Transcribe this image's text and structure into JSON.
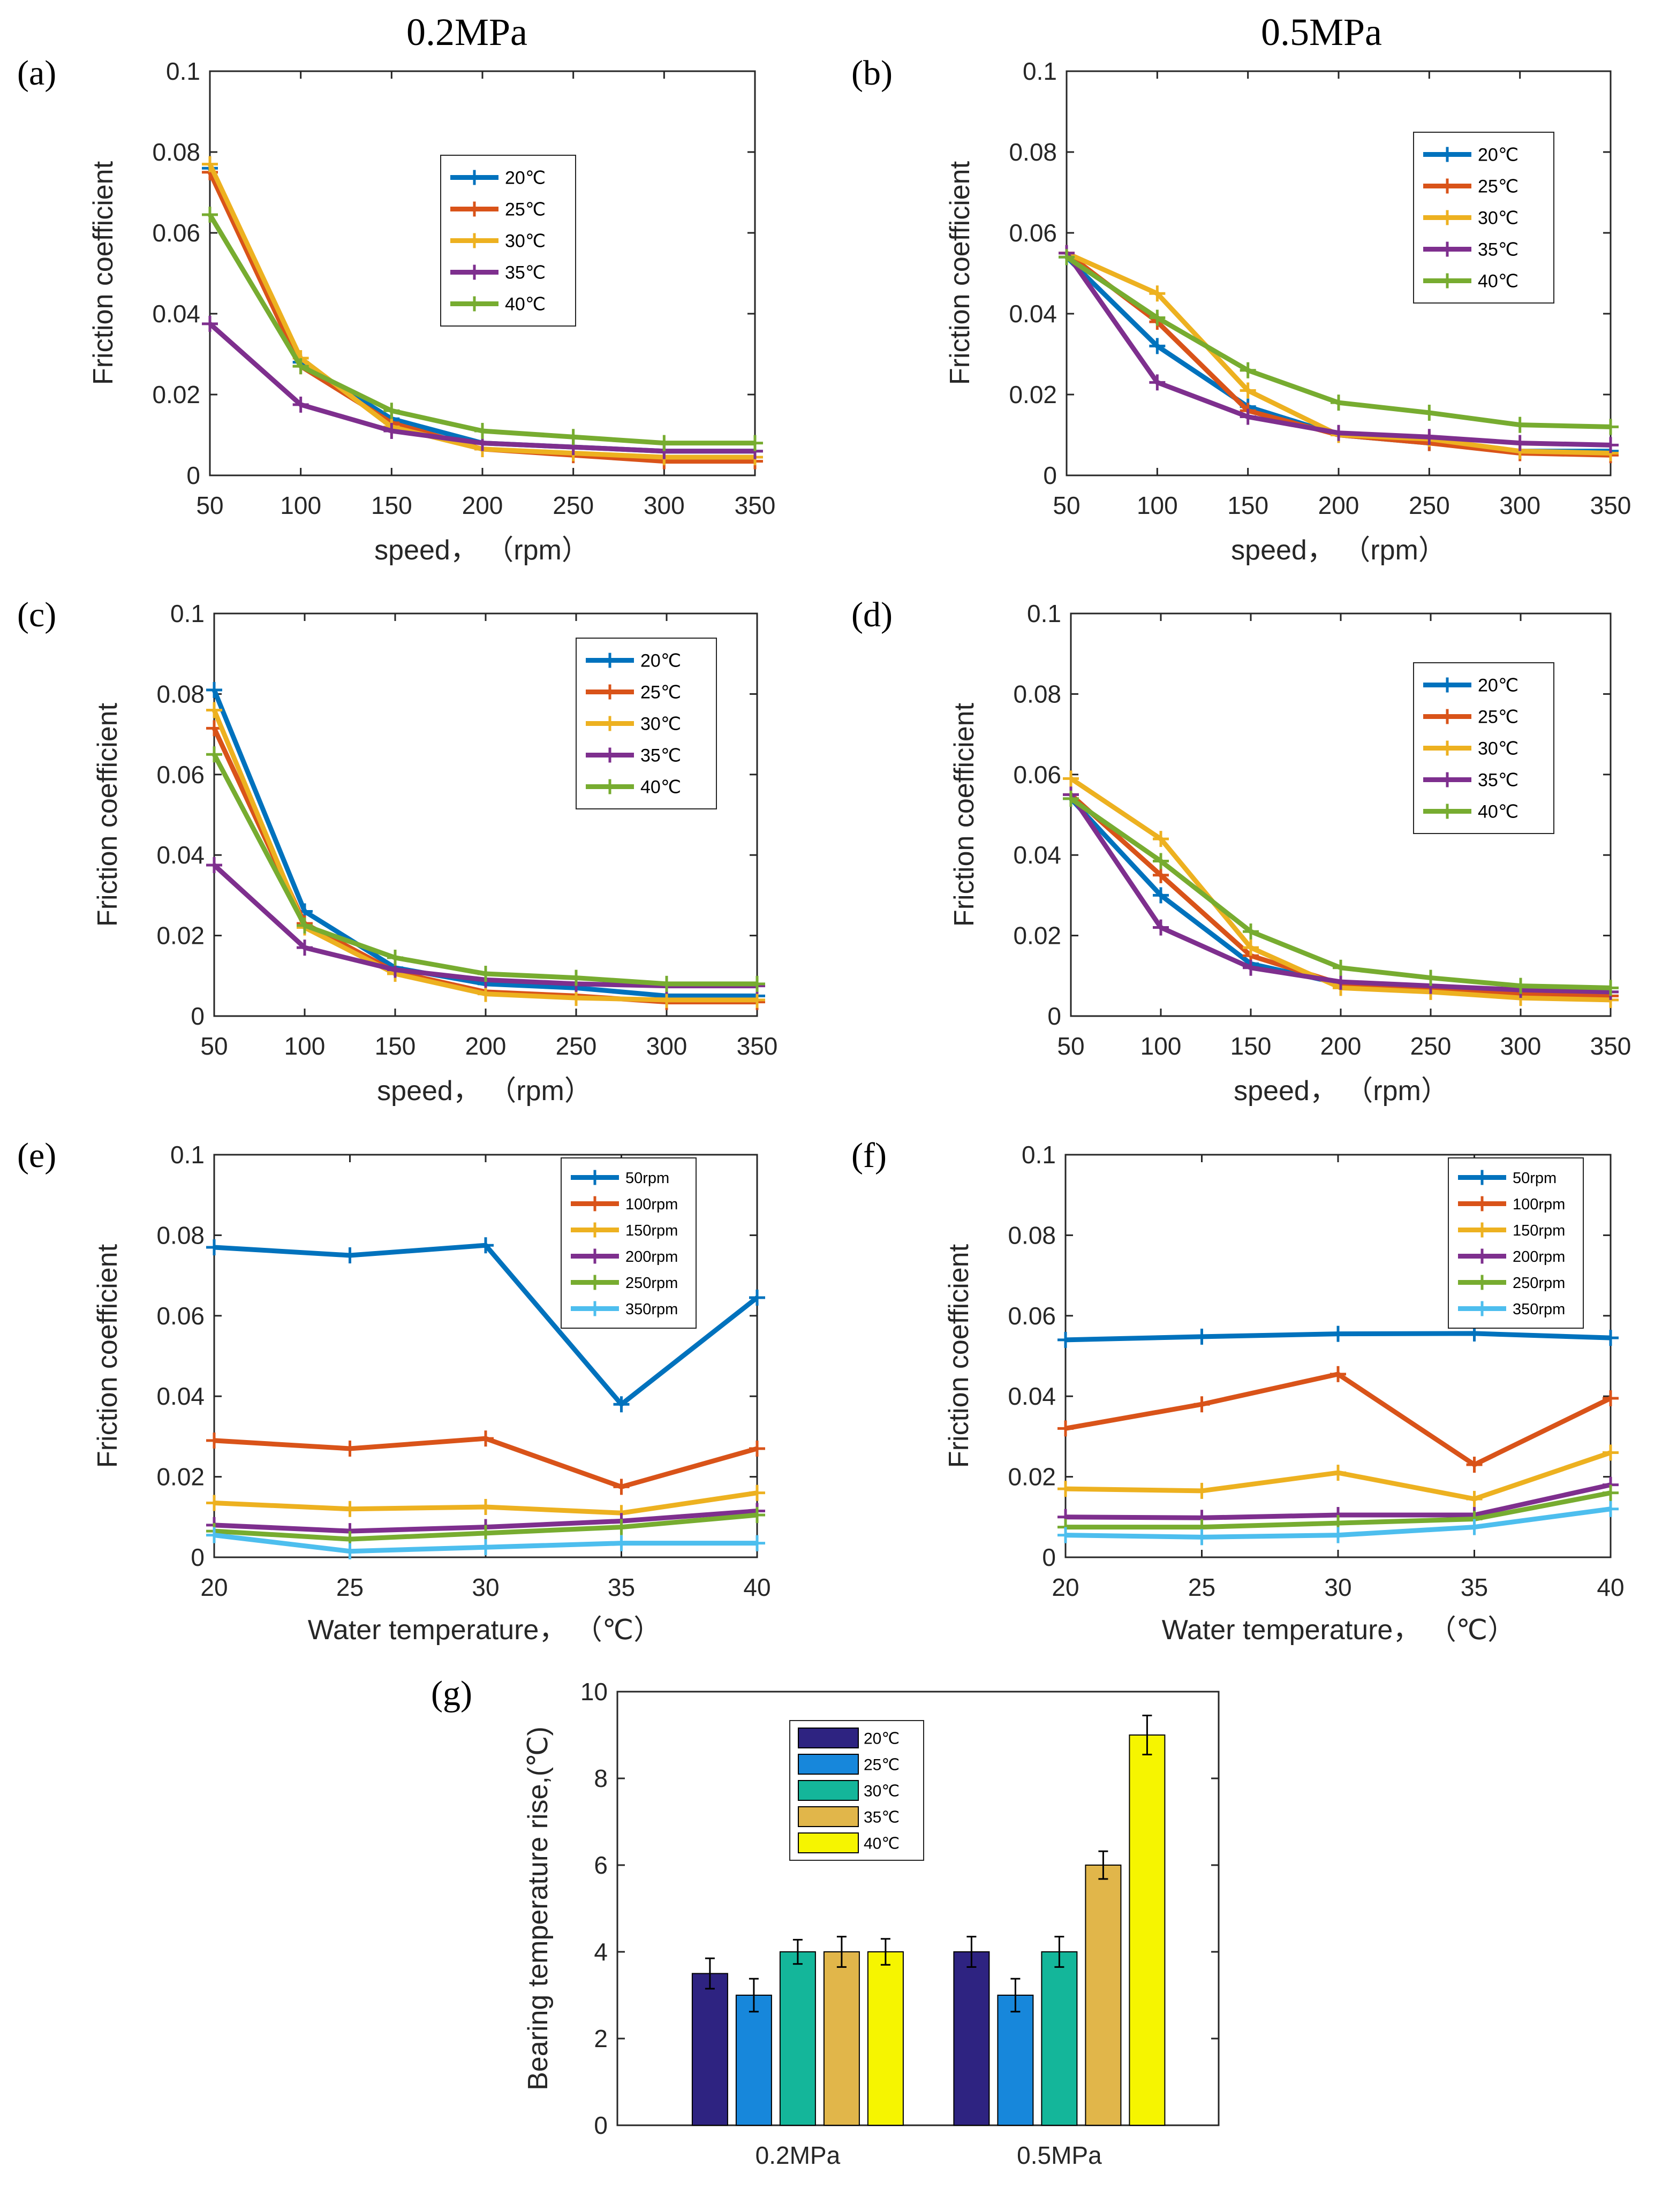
{
  "figure": {
    "header_left": "0.2MPa",
    "header_right": "0.5MPa"
  },
  "colors": {
    "c1": "#0072BD",
    "c2": "#D95319",
    "c3": "#EDB120",
    "c4": "#7E2F8E",
    "c5": "#77AC30",
    "c6": "#4DBEEE",
    "axis": "#262626",
    "bar1": "#2E2381",
    "bar2": "#1787DB",
    "bar3": "#14B69A",
    "bar4": "#E1B64A",
    "bar5": "#F6F500"
  },
  "chart_data": [
    {
      "id": "a",
      "panel_label": "(a)",
      "type": "line",
      "xlabel": "speed， （rpm）",
      "ylabel": "Friction coefficient",
      "xlim": [
        50,
        350
      ],
      "ylim": [
        0,
        0.1
      ],
      "xticks": [
        "50",
        "100",
        "150",
        "200",
        "250",
        "300",
        "350"
      ],
      "yticks": [
        "0",
        "0.02",
        "0.04",
        "0.06",
        "0.08",
        "0.1"
      ],
      "x": [
        50,
        100,
        150,
        200,
        250,
        300,
        350
      ],
      "series": [
        {
          "name": "20℃",
          "color": "#0072BD",
          "values": [
            0.076,
            0.028,
            0.014,
            0.008,
            0.007,
            0.006,
            0.006
          ]
        },
        {
          "name": "25℃",
          "color": "#D95319",
          "values": [
            0.075,
            0.027,
            0.013,
            0.0065,
            0.005,
            0.0035,
            0.0035
          ]
        },
        {
          "name": "30℃",
          "color": "#EDB120",
          "values": [
            0.077,
            0.029,
            0.012,
            0.0065,
            0.0055,
            0.0045,
            0.0045
          ]
        },
        {
          "name": "35℃",
          "color": "#7E2F8E",
          "values": [
            0.0375,
            0.0175,
            0.011,
            0.008,
            0.007,
            0.006,
            0.006
          ]
        },
        {
          "name": "40℃",
          "color": "#77AC30",
          "values": [
            0.0645,
            0.027,
            0.016,
            0.011,
            0.0095,
            0.008,
            0.008
          ]
        }
      ]
    },
    {
      "id": "b",
      "panel_label": "(b)",
      "type": "line",
      "xlabel": "speed， （rpm）",
      "ylabel": "Friction coefficient",
      "xlim": [
        50,
        350
      ],
      "ylim": [
        0,
        0.1
      ],
      "xticks": [
        "50",
        "100",
        "150",
        "200",
        "250",
        "300",
        "350"
      ],
      "yticks": [
        "0",
        "0.02",
        "0.04",
        "0.06",
        "0.08",
        "0.1"
      ],
      "x": [
        50,
        100,
        150,
        200,
        250,
        300,
        350
      ],
      "series": [
        {
          "name": "20℃",
          "color": "#0072BD",
          "values": [
            0.054,
            0.032,
            0.017,
            0.01,
            0.008,
            0.006,
            0.006
          ]
        },
        {
          "name": "25℃",
          "color": "#D95319",
          "values": [
            0.055,
            0.038,
            0.016,
            0.01,
            0.008,
            0.0055,
            0.005
          ]
        },
        {
          "name": "30℃",
          "color": "#EDB120",
          "values": [
            0.055,
            0.045,
            0.021,
            0.01,
            0.009,
            0.006,
            0.0055
          ]
        },
        {
          "name": "35℃",
          "color": "#7E2F8E",
          "values": [
            0.055,
            0.023,
            0.0145,
            0.0105,
            0.0095,
            0.008,
            0.0075
          ]
        },
        {
          "name": "40℃",
          "color": "#77AC30",
          "values": [
            0.054,
            0.039,
            0.026,
            0.018,
            0.0155,
            0.0125,
            0.012
          ]
        }
      ]
    },
    {
      "id": "c",
      "panel_label": "(c)",
      "type": "line",
      "xlabel": "speed， （rpm）",
      "ylabel": "Friction coefficient",
      "xlim": [
        50,
        350
      ],
      "ylim": [
        0,
        0.1
      ],
      "xticks": [
        "50",
        "100",
        "150",
        "200",
        "250",
        "300",
        "350"
      ],
      "yticks": [
        "0",
        "0.02",
        "0.04",
        "0.06",
        "0.08",
        "0.1"
      ],
      "x": [
        50,
        100,
        150,
        200,
        250,
        300,
        350
      ],
      "series": [
        {
          "name": "20℃",
          "color": "#0072BD",
          "values": [
            0.081,
            0.026,
            0.012,
            0.008,
            0.007,
            0.005,
            0.005
          ]
        },
        {
          "name": "25℃",
          "color": "#D95319",
          "values": [
            0.0715,
            0.023,
            0.011,
            0.006,
            0.005,
            0.0035,
            0.0035
          ]
        },
        {
          "name": "30℃",
          "color": "#EDB120",
          "values": [
            0.076,
            0.022,
            0.0105,
            0.0055,
            0.0045,
            0.004,
            0.004
          ]
        },
        {
          "name": "35℃",
          "color": "#7E2F8E",
          "values": [
            0.0375,
            0.017,
            0.0115,
            0.009,
            0.008,
            0.0075,
            0.0075
          ]
        },
        {
          "name": "40℃",
          "color": "#77AC30",
          "values": [
            0.065,
            0.0225,
            0.0145,
            0.0105,
            0.0095,
            0.008,
            0.008
          ]
        }
      ]
    },
    {
      "id": "d",
      "panel_label": "(d)",
      "type": "line",
      "xlabel": "speed， （rpm）",
      "ylabel": "Friction coefficient",
      "xlim": [
        50,
        350
      ],
      "ylim": [
        0,
        0.1
      ],
      "xticks": [
        "50",
        "100",
        "150",
        "200",
        "250",
        "300",
        "350"
      ],
      "yticks": [
        "0",
        "0.02",
        "0.04",
        "0.06",
        "0.08",
        "0.1"
      ],
      "x": [
        50,
        100,
        150,
        200,
        250,
        300,
        350
      ],
      "series": [
        {
          "name": "20℃",
          "color": "#0072BD",
          "values": [
            0.054,
            0.03,
            0.013,
            0.008,
            0.007,
            0.006,
            0.006
          ]
        },
        {
          "name": "25℃",
          "color": "#D95319",
          "values": [
            0.055,
            0.035,
            0.015,
            0.008,
            0.007,
            0.0055,
            0.005
          ]
        },
        {
          "name": "30℃",
          "color": "#EDB120",
          "values": [
            0.059,
            0.044,
            0.017,
            0.007,
            0.006,
            0.0045,
            0.004
          ]
        },
        {
          "name": "35℃",
          "color": "#7E2F8E",
          "values": [
            0.055,
            0.022,
            0.012,
            0.0085,
            0.0075,
            0.0065,
            0.006
          ]
        },
        {
          "name": "40℃",
          "color": "#77AC30",
          "values": [
            0.054,
            0.0385,
            0.021,
            0.012,
            0.0095,
            0.0075,
            0.007
          ]
        }
      ]
    },
    {
      "id": "e",
      "panel_label": "(e)",
      "type": "line",
      "xlabel": "Water temperature， （℃）",
      "ylabel": "Friction coefficient",
      "xlim": [
        20,
        40
      ],
      "ylim": [
        0,
        0.1
      ],
      "xticks": [
        "20",
        "25",
        "30",
        "35",
        "40"
      ],
      "yticks": [
        "0",
        "0.02",
        "0.04",
        "0.06",
        "0.08",
        "0.1"
      ],
      "x": [
        20,
        25,
        30,
        35,
        40
      ],
      "series": [
        {
          "name": "50rpm",
          "color": "#0072BD",
          "values": [
            0.077,
            0.075,
            0.0775,
            0.038,
            0.0645
          ]
        },
        {
          "name": "100rpm",
          "color": "#D95319",
          "values": [
            0.029,
            0.027,
            0.0295,
            0.0175,
            0.027
          ]
        },
        {
          "name": "150rpm",
          "color": "#EDB120",
          "values": [
            0.0135,
            0.012,
            0.0125,
            0.011,
            0.016
          ]
        },
        {
          "name": "200rpm",
          "color": "#7E2F8E",
          "values": [
            0.008,
            0.0065,
            0.0075,
            0.009,
            0.0115
          ]
        },
        {
          "name": "250rpm",
          "color": "#77AC30",
          "values": [
            0.0065,
            0.0045,
            0.006,
            0.0075,
            0.0105
          ]
        },
        {
          "name": "350rpm",
          "color": "#4DBEEE",
          "values": [
            0.0055,
            0.0015,
            0.0025,
            0.0035,
            0.0035
          ]
        }
      ]
    },
    {
      "id": "f",
      "panel_label": "(f)",
      "type": "line",
      "xlabel": "Water temperature， （℃）",
      "ylabel": "Friction coefficient",
      "xlim": [
        20,
        40
      ],
      "ylim": [
        0,
        0.1
      ],
      "xticks": [
        "20",
        "25",
        "30",
        "35",
        "40"
      ],
      "yticks": [
        "0",
        "0.02",
        "0.04",
        "0.06",
        "0.08",
        "0.1"
      ],
      "x": [
        20,
        25,
        30,
        35,
        40
      ],
      "series": [
        {
          "name": "50rpm",
          "color": "#0072BD",
          "values": [
            0.054,
            0.0548,
            0.0555,
            0.0556,
            0.0545
          ]
        },
        {
          "name": "100rpm",
          "color": "#D95319",
          "values": [
            0.032,
            0.038,
            0.0455,
            0.023,
            0.0395
          ]
        },
        {
          "name": "150rpm",
          "color": "#EDB120",
          "values": [
            0.017,
            0.0165,
            0.021,
            0.0145,
            0.026
          ]
        },
        {
          "name": "200rpm",
          "color": "#7E2F8E",
          "values": [
            0.01,
            0.0098,
            0.0105,
            0.0105,
            0.018
          ]
        },
        {
          "name": "250rpm",
          "color": "#77AC30",
          "values": [
            0.0075,
            0.0075,
            0.0085,
            0.0095,
            0.016
          ]
        },
        {
          "name": "350rpm",
          "color": "#4DBEEE",
          "values": [
            0.0055,
            0.005,
            0.0055,
            0.0075,
            0.012
          ]
        }
      ]
    },
    {
      "id": "g",
      "panel_label": "(g)",
      "type": "bar",
      "xlabel": "",
      "ylabel": "Bearing temperature rise,(℃)",
      "ylim": [
        0,
        10
      ],
      "yticks": [
        "0",
        "2",
        "4",
        "6",
        "8",
        "10"
      ],
      "categories": [
        "0.2MPa",
        "0.5MPa"
      ],
      "series": [
        {
          "name": "20℃",
          "color": "#2E2381",
          "values": [
            3.5,
            4.0
          ],
          "errors": [
            0.35,
            0.35
          ]
        },
        {
          "name": "25℃",
          "color": "#1787DB",
          "values": [
            3.0,
            3.0
          ],
          "errors": [
            0.38,
            0.38
          ]
        },
        {
          "name": "30℃",
          "color": "#14B69A",
          "values": [
            4.0,
            4.0
          ],
          "errors": [
            0.28,
            0.35
          ]
        },
        {
          "name": "35℃",
          "color": "#E1B64A",
          "values": [
            4.0,
            6.0
          ],
          "errors": [
            0.35,
            0.32
          ]
        },
        {
          "name": "40℃",
          "color": "#F6F500",
          "values": [
            4.0,
            9.0
          ],
          "errors": [
            0.3,
            0.45
          ]
        }
      ]
    }
  ]
}
